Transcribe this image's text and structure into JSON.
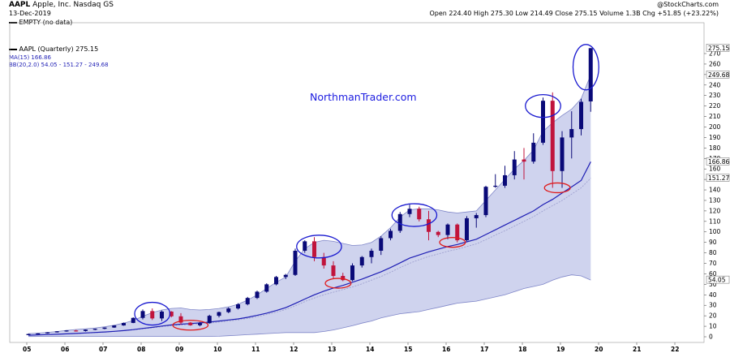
{
  "header": {
    "symbol": "AAPL",
    "company": "Apple, Inc.  Nasdaq GS",
    "date": "13-Dec-2019",
    "source": "@StockCharts.com",
    "ohlc": "Open 224.40  High 275.30  Low 214.49  Close 275.15  Volume 1.3B  Chg +51.85 (+23.22%)",
    "empty_legend": "EMPTY (no data)",
    "legend_price": "AAPL (Quarterly) 275.15",
    "legend_ma": "MA(15) 166.86",
    "legend_bb": "BB(20,2.0) 54.05 - 151.27 - 249.68"
  },
  "watermark": "NorthmanTrader.com",
  "colors": {
    "up": "#0a0a78",
    "down": "#c0143c",
    "band_fill": "#cfd3ee",
    "band_edge": "#7f86c8",
    "ma": "#1e1eb4",
    "bb_mid": "#9a9ccc",
    "circle_blue": "#1a1ad0",
    "circle_red": "#e01a1a"
  },
  "chart_data": {
    "type": "candlestick",
    "title": "AAPL (Quarterly) 275.15",
    "x_ticks": [
      "05",
      "06",
      "07",
      "08",
      "09",
      "10",
      "11",
      "12",
      "13",
      "14",
      "15",
      "16",
      "17",
      "18",
      "19",
      "20",
      "21",
      "22"
    ],
    "y_ticks": [
      0,
      10,
      20,
      30,
      40,
      50,
      60,
      70,
      80,
      90,
      100,
      110,
      120,
      130,
      140,
      150,
      160,
      170,
      180,
      190,
      200,
      210,
      220,
      230,
      240,
      250,
      260,
      270
    ],
    "ylim": [
      0,
      275
    ],
    "price_labels": [
      "275.15",
      "249.68",
      "166.86",
      "151.27",
      "54.05"
    ],
    "ohlc": [
      {
        "q": "2005Q1",
        "o": 1.6,
        "h": 3.0,
        "l": 1.5,
        "c": 2.6
      },
      {
        "q": "2005Q2",
        "o": 2.6,
        "h": 3.4,
        "l": 2.4,
        "c": 3.2
      },
      {
        "q": "2005Q3",
        "o": 3.2,
        "h": 4.4,
        "l": 3.0,
        "c": 4.2
      },
      {
        "q": "2005Q4",
        "o": 4.2,
        "h": 5.4,
        "l": 4.0,
        "c": 5.2
      },
      {
        "q": "2006Q1",
        "o": 5.2,
        "h": 6.3,
        "l": 4.8,
        "c": 6.0
      },
      {
        "q": "2006Q2",
        "o": 6.0,
        "h": 6.6,
        "l": 4.9,
        "c": 5.5
      },
      {
        "q": "2006Q3",
        "o": 5.5,
        "h": 7.0,
        "l": 5.0,
        "c": 6.8
      },
      {
        "q": "2006Q4",
        "o": 6.8,
        "h": 7.8,
        "l": 6.3,
        "c": 7.6
      },
      {
        "q": "2007Q1",
        "o": 7.6,
        "h": 9.0,
        "l": 7.2,
        "c": 8.8
      },
      {
        "q": "2007Q2",
        "o": 8.8,
        "h": 11.0,
        "l": 8.5,
        "c": 10.8
      },
      {
        "q": "2007Q3",
        "o": 10.8,
        "h": 13.5,
        "l": 10.5,
        "c": 13.2
      },
      {
        "q": "2007Q4",
        "o": 13.2,
        "h": 18.5,
        "l": 13.0,
        "c": 18.0
      },
      {
        "q": "2008Q1",
        "o": 18.0,
        "h": 26.0,
        "l": 16.5,
        "c": 24.5
      },
      {
        "q": "2008Q2",
        "o": 24.5,
        "h": 27.0,
        "l": 16.0,
        "c": 17.5
      },
      {
        "q": "2008Q3",
        "o": 17.5,
        "h": 25.0,
        "l": 15.0,
        "c": 24.0
      },
      {
        "q": "2008Q4",
        "o": 24.0,
        "h": 24.5,
        "l": 18.5,
        "c": 19.5
      },
      {
        "q": "2009Q1",
        "o": 19.5,
        "h": 22.5,
        "l": 11.5,
        "c": 13.5
      },
      {
        "q": "2009Q2",
        "o": 13.5,
        "h": 14.0,
        "l": 10.5,
        "c": 11.0
      },
      {
        "q": "2009Q3",
        "o": 11.0,
        "h": 14.0,
        "l": 10.0,
        "c": 13.0
      },
      {
        "q": "2009Q4",
        "o": 13.0,
        "h": 21.0,
        "l": 12.5,
        "c": 20.0
      },
      {
        "q": "2010Q1",
        "o": 20.0,
        "h": 24.0,
        "l": 18.5,
        "c": 23.5
      },
      {
        "q": "2010Q2",
        "o": 23.5,
        "h": 28.0,
        "l": 22.5,
        "c": 27.0
      },
      {
        "q": "2010Q3",
        "o": 27.0,
        "h": 32.0,
        "l": 26.0,
        "c": 31.0
      },
      {
        "q": "2010Q4",
        "o": 31.0,
        "h": 38.0,
        "l": 30.0,
        "c": 37.0
      },
      {
        "q": "2011Q1",
        "o": 37.0,
        "h": 44.0,
        "l": 36.0,
        "c": 43.0
      },
      {
        "q": "2011Q2",
        "o": 43.0,
        "h": 51.0,
        "l": 42.0,
        "c": 50.0
      },
      {
        "q": "2011Q3",
        "o": 50.0,
        "h": 58.0,
        "l": 49.0,
        "c": 57.0
      },
      {
        "q": "2011Q4",
        "o": 57.0,
        "h": 60.0,
        "l": 55.0,
        "c": 59.0
      },
      {
        "q": "2012Q1",
        "o": 59.0,
        "h": 84.0,
        "l": 58.0,
        "c": 82.0
      },
      {
        "q": "2012Q2",
        "o": 82.0,
        "h": 92.0,
        "l": 80.0,
        "c": 91.0
      },
      {
        "q": "2012Q3",
        "o": 91.0,
        "h": 95.0,
        "l": 72.0,
        "c": 76.0
      },
      {
        "q": "2012Q4",
        "o": 76.0,
        "h": 80.0,
        "l": 65.0,
        "c": 68.0
      },
      {
        "q": "2013Q1",
        "o": 68.0,
        "h": 72.0,
        "l": 55.0,
        "c": 58.0
      },
      {
        "q": "2013Q2",
        "o": 58.0,
        "h": 61.0,
        "l": 53.0,
        "c": 54.0
      },
      {
        "q": "2013Q3",
        "o": 54.0,
        "h": 70.0,
        "l": 53.0,
        "c": 68.0
      },
      {
        "q": "2013Q4",
        "o": 68.0,
        "h": 77.0,
        "l": 66.0,
        "c": 76.0
      },
      {
        "q": "2014Q1",
        "o": 76.0,
        "h": 84.0,
        "l": 70.0,
        "c": 82.0
      },
      {
        "q": "2014Q2",
        "o": 82.0,
        "h": 96.0,
        "l": 78.0,
        "c": 94.0
      },
      {
        "q": "2014Q3",
        "o": 94.0,
        "h": 103.0,
        "l": 92.0,
        "c": 101.0
      },
      {
        "q": "2014Q4",
        "o": 101.0,
        "h": 119.0,
        "l": 99.0,
        "c": 117.0
      },
      {
        "q": "2015Q1",
        "o": 117.0,
        "h": 126.0,
        "l": 114.0,
        "c": 122.0
      },
      {
        "q": "2015Q2",
        "o": 122.0,
        "h": 124.0,
        "l": 110.0,
        "c": 112.0
      },
      {
        "q": "2015Q3",
        "o": 112.0,
        "h": 120.0,
        "l": 92.0,
        "c": 100.0
      },
      {
        "q": "2015Q4",
        "o": 100.0,
        "h": 101.0,
        "l": 95.0,
        "c": 97.0
      },
      {
        "q": "2016Q1",
        "o": 97.0,
        "h": 108.0,
        "l": 93.0,
        "c": 107.0
      },
      {
        "q": "2016Q2",
        "o": 107.0,
        "h": 108.0,
        "l": 90.0,
        "c": 92.0
      },
      {
        "q": "2016Q3",
        "o": 92.0,
        "h": 115.0,
        "l": 91.0,
        "c": 113.0
      },
      {
        "q": "2016Q4",
        "o": 113.0,
        "h": 118.0,
        "l": 104.0,
        "c": 116.0
      },
      {
        "q": "2017Q1",
        "o": 116.0,
        "h": 144.0,
        "l": 114.0,
        "c": 143.0
      },
      {
        "q": "2017Q2",
        "o": 143.0,
        "h": 155.0,
        "l": 142.0,
        "c": 144.0
      },
      {
        "q": "2017Q3",
        "o": 144.0,
        "h": 163.0,
        "l": 142.0,
        "c": 154.0
      },
      {
        "q": "2017Q4",
        "o": 154.0,
        "h": 177.0,
        "l": 150.0,
        "c": 169.0
      },
      {
        "q": "2018Q1",
        "o": 169.0,
        "h": 180.0,
        "l": 150.0,
        "c": 167.0
      },
      {
        "q": "2018Q2",
        "o": 167.0,
        "h": 194.0,
        "l": 165.0,
        "c": 185.0
      },
      {
        "q": "2018Q3",
        "o": 185.0,
        "h": 228.0,
        "l": 183.0,
        "c": 225.0
      },
      {
        "q": "2018Q4",
        "o": 225.0,
        "h": 233.0,
        "l": 142.0,
        "c": 158.0
      },
      {
        "q": "2019Q1",
        "o": 158.0,
        "h": 196.0,
        "l": 142.0,
        "c": 190.0
      },
      {
        "q": "2019Q2",
        "o": 190.0,
        "h": 215.0,
        "l": 170.0,
        "c": 198.0
      },
      {
        "q": "2019Q3",
        "o": 198.0,
        "h": 227.0,
        "l": 192.0,
        "c": 224.0
      },
      {
        "q": "2019Q4",
        "o": 224.4,
        "h": 275.3,
        "l": 214.49,
        "c": 275.15
      }
    ],
    "series": [
      {
        "name": "MA(15)",
        "values": [
          1.5,
          1.8,
          2.1,
          2.4,
          2.8,
          3.2,
          3.6,
          4.1,
          4.6,
          5.2,
          5.9,
          6.8,
          8.0,
          9.0,
          10.2,
          11.3,
          12.0,
          12.6,
          13.2,
          14.0,
          15.0,
          16.0,
          17.0,
          18.6,
          20.4,
          22.5,
          25.0,
          27.8,
          31.8,
          36.0,
          40.0,
          43.5,
          46.5,
          49.0,
          52.0,
          55.0,
          58.5,
          62.0,
          66.0,
          70.5,
          75.0,
          78.0,
          81.0,
          83.5,
          86.0,
          88.0,
          90.5,
          93.0,
          97.5,
          102.0,
          106.5,
          111.0,
          115.5,
          120.0,
          126.0,
          131.0,
          137.0,
          143.0,
          149.0,
          166.86
        ]
      },
      {
        "name": "BB upper",
        "values": [
          3.0,
          3.5,
          4.2,
          5.0,
          6.0,
          7.0,
          7.6,
          8.4,
          9.5,
          11.0,
          13.0,
          15.5,
          19.5,
          23.0,
          25.5,
          27.0,
          27.5,
          26.0,
          25.5,
          26.0,
          27.0,
          28.5,
          31.0,
          35.0,
          40.0,
          46.0,
          52.0,
          57.0,
          72.0,
          84.0,
          90.0,
          92.0,
          91.0,
          89.0,
          87.0,
          87.5,
          90.0,
          96.0,
          104.0,
          114.0,
          121.0,
          122.0,
          122.0,
          121.0,
          119.0,
          118.0,
          119.0,
          120.0,
          130.0,
          140.0,
          150.0,
          160.0,
          168.0,
          178.0,
          196.0,
          204.0,
          211.0,
          217.0,
          227.0,
          249.68
        ]
      },
      {
        "name": "BB mid",
        "values": [
          1.4,
          1.7,
          2.0,
          2.3,
          2.7,
          3.0,
          3.4,
          3.9,
          4.4,
          5.0,
          5.7,
          6.5,
          7.5,
          8.5,
          9.6,
          10.5,
          11.2,
          11.8,
          12.3,
          13.0,
          14.0,
          15.0,
          16.0,
          17.5,
          19.2,
          21.2,
          23.5,
          26.0,
          29.5,
          33.5,
          37.0,
          40.0,
          42.5,
          45.0,
          47.5,
          50.5,
          54.0,
          57.5,
          61.5,
          66.0,
          70.0,
          73.5,
          76.5,
          79.0,
          81.5,
          83.5,
          86.0,
          88.5,
          92.5,
          97.0,
          101.0,
          105.5,
          110.0,
          114.5,
          120.0,
          125.0,
          130.0,
          136.0,
          142.0,
          151.27
        ]
      },
      {
        "name": "BB lower",
        "values": [
          0.2,
          0.3,
          0.3,
          0.3,
          0.3,
          0.3,
          0.3,
          0.3,
          0.3,
          0.3,
          0.3,
          0.3,
          0.3,
          0.3,
          0.3,
          0.3,
          0.3,
          0.3,
          0.3,
          0.3,
          0.5,
          1.0,
          1.5,
          2.0,
          2.5,
          3.0,
          3.5,
          4.0,
          4.0,
          4.0,
          4.0,
          5.0,
          6.5,
          8.5,
          10.5,
          13.0,
          15.0,
          18.0,
          20.0,
          22.0,
          23.0,
          24.0,
          26.0,
          28.0,
          30.0,
          32.0,
          33.0,
          34.0,
          36.0,
          38.0,
          40.0,
          43.0,
          46.0,
          48.0,
          50.0,
          54.0,
          57.0,
          59.0,
          58.0,
          54.05
        ]
      }
    ],
    "annotations": [
      {
        "label": "top circle",
        "color": "blue",
        "x_start": "2008Q1",
        "x_end": "2008Q3",
        "y": 22
      },
      {
        "label": "bottom circle",
        "color": "red",
        "x_start": "2009Q1",
        "x_end": "2009Q3",
        "y": 11
      },
      {
        "label": "top circle",
        "color": "blue",
        "x_start": "2012Q2",
        "x_end": "2013Q1",
        "y": 86
      },
      {
        "label": "bottom circle",
        "color": "red",
        "x_start": "2013Q1",
        "x_end": "2013Q2",
        "y": 51
      },
      {
        "label": "top circle",
        "color": "blue",
        "x_start": "2014Q4",
        "x_end": "2015Q3",
        "y": 116
      },
      {
        "label": "bottom circle",
        "color": "red",
        "x_start": "2016Q1",
        "x_end": "2016Q2",
        "y": 90
      },
      {
        "label": "top circle",
        "color": "blue",
        "x_start": "2018Q2",
        "x_end": "2018Q4",
        "y": 220
      },
      {
        "label": "bottom circle",
        "color": "red",
        "x_start": "2018Q4",
        "x_end": "2019Q1",
        "y": 142
      },
      {
        "label": "top circle",
        "color": "blue",
        "x_start": "2019Q3",
        "x_end": "2019Q4",
        "y": 257
      }
    ]
  }
}
